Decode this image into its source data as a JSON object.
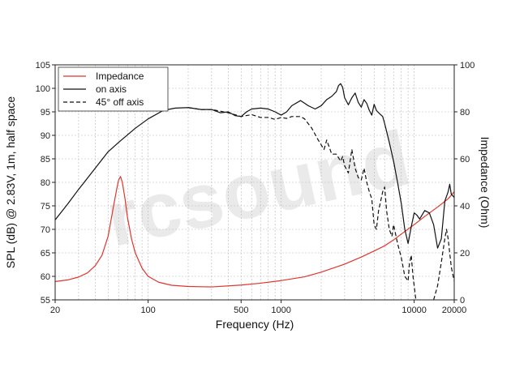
{
  "chart_data": {
    "type": "line",
    "xlabel": "Frequency (Hz)",
    "ylabel": "SPL (dB) @ 2.83V, 1m, half space",
    "y2label": "Impedance (Ohm)",
    "xscale": "log",
    "xlim": [
      20,
      20000
    ],
    "ylim": [
      55,
      105
    ],
    "y2lim": [
      0,
      100
    ],
    "grid": true,
    "legend_position": "top-left",
    "watermark": "rcsound",
    "x_ticks": [
      {
        "value": 20,
        "label": "20"
      },
      {
        "value": 100,
        "label": "100"
      },
      {
        "value": 500,
        "label": "500"
      },
      {
        "value": 1000,
        "label": "1000"
      },
      {
        "value": 10000,
        "label": "10000"
      },
      {
        "value": 20000,
        "label": "20000"
      }
    ],
    "y_ticks": [
      "55",
      "60",
      "65",
      "70",
      "75",
      "80",
      "85",
      "90",
      "95",
      "100",
      "105"
    ],
    "y2_ticks": [
      "0",
      "20",
      "40",
      "60",
      "80",
      "100"
    ],
    "series": [
      {
        "name": "Impedance",
        "axis": "right",
        "color": "#e0352b",
        "dash": "solid",
        "points": [
          [
            20,
            7.8
          ],
          [
            25,
            8.5
          ],
          [
            30,
            9.7
          ],
          [
            35,
            11.5
          ],
          [
            40,
            14.5
          ],
          [
            45,
            19
          ],
          [
            50,
            27
          ],
          [
            55,
            40
          ],
          [
            58,
            47
          ],
          [
            60,
            51
          ],
          [
            62,
            52.5
          ],
          [
            64,
            50
          ],
          [
            67,
            43
          ],
          [
            70,
            35
          ],
          [
            75,
            26
          ],
          [
            80,
            20
          ],
          [
            90,
            13.5
          ],
          [
            100,
            10
          ],
          [
            120,
            7.5
          ],
          [
            150,
            6.2
          ],
          [
            200,
            5.7
          ],
          [
            300,
            5.5
          ],
          [
            500,
            6.3
          ],
          [
            700,
            7.1
          ],
          [
            1000,
            8.2
          ],
          [
            1500,
            9.8
          ],
          [
            2000,
            11.8
          ],
          [
            3000,
            15.2
          ],
          [
            4000,
            18.2
          ],
          [
            5000,
            20.8
          ],
          [
            6000,
            23
          ],
          [
            7000,
            25.5
          ],
          [
            8000,
            28
          ],
          [
            10000,
            32
          ],
          [
            12000,
            35.5
          ],
          [
            15000,
            39.5
          ],
          [
            18000,
            43
          ],
          [
            20000,
            46
          ]
        ]
      },
      {
        "name": "on axis",
        "axis": "left",
        "color": "#111111",
        "dash": "solid",
        "points": [
          [
            20,
            72
          ],
          [
            25,
            75.5
          ],
          [
            30,
            78.5
          ],
          [
            40,
            83
          ],
          [
            50,
            86.5
          ],
          [
            60,
            88.5
          ],
          [
            80,
            91.5
          ],
          [
            100,
            93.5
          ],
          [
            130,
            95.3
          ],
          [
            160,
            95.8
          ],
          [
            200,
            95.9
          ],
          [
            250,
            95.5
          ],
          [
            300,
            95.5
          ],
          [
            350,
            94.8
          ],
          [
            400,
            95
          ],
          [
            450,
            94.2
          ],
          [
            500,
            94
          ],
          [
            550,
            95
          ],
          [
            600,
            95.6
          ],
          [
            700,
            95.8
          ],
          [
            800,
            95.6
          ],
          [
            900,
            95
          ],
          [
            1000,
            94.3
          ],
          [
            1100,
            95
          ],
          [
            1200,
            96.3
          ],
          [
            1400,
            97.4
          ],
          [
            1600,
            96.3
          ],
          [
            1800,
            95.6
          ],
          [
            2000,
            96.3
          ],
          [
            2200,
            97.6
          ],
          [
            2400,
            98.3
          ],
          [
            2600,
            99.3
          ],
          [
            2700,
            100.6
          ],
          [
            2800,
            101
          ],
          [
            2900,
            100.2
          ],
          [
            3000,
            98
          ],
          [
            3200,
            96.5
          ],
          [
            3400,
            98
          ],
          [
            3600,
            99
          ],
          [
            3800,
            97
          ],
          [
            4000,
            96
          ],
          [
            4200,
            97.6
          ],
          [
            4400,
            96.8
          ],
          [
            4600,
            95.3
          ],
          [
            4800,
            94.3
          ],
          [
            5000,
            96.6
          ],
          [
            5200,
            95.3
          ],
          [
            5500,
            94.6
          ],
          [
            5800,
            94
          ],
          [
            6000,
            92.5
          ],
          [
            6500,
            88.5
          ],
          [
            7000,
            84.5
          ],
          [
            7500,
            80
          ],
          [
            8000,
            75.5
          ],
          [
            8500,
            70
          ],
          [
            9000,
            67
          ],
          [
            9500,
            70.5
          ],
          [
            10000,
            73.5
          ],
          [
            10500,
            73
          ],
          [
            11000,
            72.2
          ],
          [
            12000,
            74
          ],
          [
            13000,
            73.5
          ],
          [
            14000,
            71
          ],
          [
            15000,
            66
          ],
          [
            16000,
            68
          ],
          [
            17000,
            76
          ],
          [
            18000,
            78
          ],
          [
            18500,
            79.6
          ],
          [
            19000,
            77.5
          ],
          [
            20000,
            76.8
          ]
        ]
      },
      {
        "name": "45° off axis",
        "axis": "left",
        "color": "#111111",
        "dash": "dashed",
        "points": [
          [
            200,
            95.9
          ],
          [
            250,
            95.5
          ],
          [
            300,
            95.5
          ],
          [
            400,
            94.8
          ],
          [
            500,
            94
          ],
          [
            600,
            94.4
          ],
          [
            700,
            93.8
          ],
          [
            800,
            93.8
          ],
          [
            900,
            93.4
          ],
          [
            1000,
            93.8
          ],
          [
            1100,
            93.6
          ],
          [
            1200,
            94
          ],
          [
            1400,
            94
          ],
          [
            1500,
            93.5
          ],
          [
            1700,
            91.5
          ],
          [
            1900,
            89
          ],
          [
            2100,
            87
          ],
          [
            2200,
            89
          ],
          [
            2400,
            86
          ],
          [
            2600,
            86
          ],
          [
            2800,
            84.5
          ],
          [
            2900,
            85.5
          ],
          [
            3000,
            83.5
          ],
          [
            3200,
            82
          ],
          [
            3400,
            87
          ],
          [
            3600,
            83
          ],
          [
            3800,
            81
          ],
          [
            4000,
            80.5
          ],
          [
            4200,
            83
          ],
          [
            4400,
            80
          ],
          [
            4600,
            78
          ],
          [
            4800,
            76.5
          ],
          [
            5000,
            71
          ],
          [
            5200,
            70
          ],
          [
            5400,
            74
          ],
          [
            5600,
            76
          ],
          [
            5800,
            78
          ],
          [
            6000,
            79
          ],
          [
            6200,
            74
          ],
          [
            6500,
            70
          ],
          [
            6800,
            68.5
          ],
          [
            7000,
            71
          ],
          [
            7500,
            67
          ],
          [
            8000,
            64
          ],
          [
            8500,
            60
          ],
          [
            9000,
            59
          ],
          [
            9200,
            62.5
          ],
          [
            9500,
            64.5
          ],
          [
            9800,
            60
          ],
          [
            10000,
            58
          ],
          [
            10300,
            55
          ]
        ]
      },
      {
        "name": "",
        "axis": "left",
        "color": "#111111",
        "dash": "dashed",
        "points": [
          [
            14000,
            55
          ],
          [
            15000,
            58
          ],
          [
            16000,
            63
          ],
          [
            17000,
            68
          ],
          [
            17500,
            70
          ],
          [
            18000,
            68
          ],
          [
            19000,
            62
          ],
          [
            20000,
            59
          ]
        ]
      }
    ],
    "legend": [
      {
        "label": "Impedance",
        "color": "#e0352b",
        "dash": "solid"
      },
      {
        "label": "on axis",
        "color": "#111111",
        "dash": "solid"
      },
      {
        "label": "45° off axis",
        "color": "#111111",
        "dash": "dashed"
      }
    ]
  }
}
